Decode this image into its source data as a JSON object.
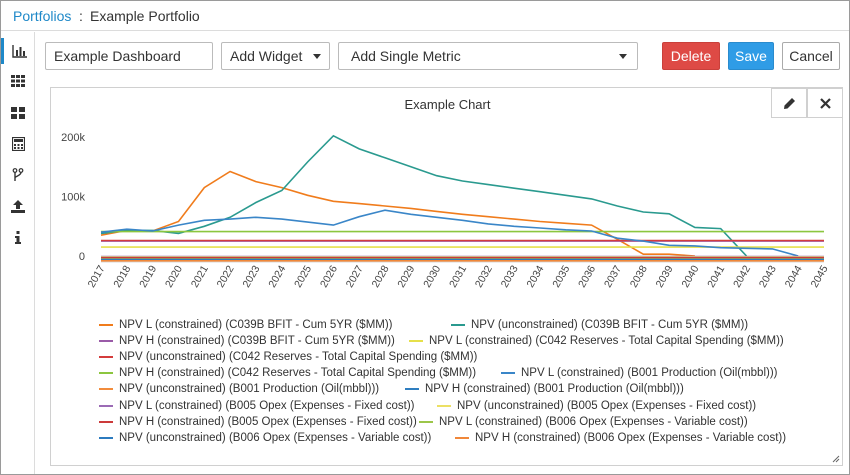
{
  "breadcrumb": {
    "root": "Portfolios",
    "separator": ":",
    "current": "Example Portfolio"
  },
  "sidebar": {
    "items": [
      {
        "icon": "bar-chart-icon",
        "active": true
      },
      {
        "icon": "grid-icon",
        "active": false
      },
      {
        "icon": "tiles-icon",
        "active": false
      },
      {
        "icon": "calculator-icon",
        "active": false
      },
      {
        "icon": "branch-icon",
        "active": false
      },
      {
        "icon": "upload-icon",
        "active": false
      },
      {
        "icon": "info-icon",
        "active": false
      }
    ]
  },
  "toolbar": {
    "dashboard_name": "Example Dashboard",
    "add_widget_label": "Add Widget",
    "add_metric_label": "Add Single Metric",
    "delete_label": "Delete",
    "save_label": "Save",
    "cancel_label": "Cancel"
  },
  "colors": {
    "accent": "#1e88c8",
    "delete": "#de4a45",
    "save": "#2f9ce6"
  },
  "chart_panel": {
    "edit_icon": "pencil-icon",
    "close_icon": "close-icon"
  },
  "chart_data": {
    "type": "line",
    "title": "Example Chart",
    "xlabel": "",
    "ylabel": "",
    "ylim": [
      0,
      200000
    ],
    "y_ticks": [
      0,
      100000,
      200000
    ],
    "y_tick_labels": [
      "0",
      "100k",
      "200k"
    ],
    "x": [
      "2017",
      "2018",
      "2019",
      "2020",
      "2021",
      "2022",
      "2023",
      "2024",
      "2025",
      "2026",
      "2027",
      "2028",
      "2029",
      "2030",
      "2031",
      "2032",
      "2033",
      "2034",
      "2035",
      "2036",
      "2037",
      "2038",
      "2039",
      "2040",
      "2041",
      "2042",
      "2043",
      "2044",
      "2045"
    ],
    "grid": false,
    "legend_position": "bottom",
    "series": [
      {
        "name": "NPV L (constrained) (C039B BFIT - Cum 5YR ($MM))",
        "color": "#f07c1c",
        "values": [
          35000,
          43000,
          42000,
          58000,
          115000,
          142000,
          125000,
          115000,
          102000,
          92000,
          88000,
          84000,
          80000,
          75000,
          70000,
          66000,
          62000,
          58000,
          55000,
          52000,
          28000,
          3000,
          3000,
          0,
          null,
          null,
          null,
          null,
          null
        ]
      },
      {
        "name": "NPV (unconstrained) (C039B BFIT - Cum 5YR ($MM))",
        "color": "#2a9a8f",
        "values": [
          38000,
          43000,
          43000,
          38000,
          50000,
          65000,
          90000,
          110000,
          158000,
          202000,
          180000,
          165000,
          150000,
          135000,
          126000,
          120000,
          114000,
          108000,
          102000,
          96000,
          84000,
          74000,
          71000,
          48000,
          46000,
          0,
          null,
          null,
          null
        ]
      },
      {
        "name": "NPV H (constrained) (C039B BFIT - Cum 5YR ($MM))",
        "color": "#9a5ba8",
        "values": [
          25000,
          25000,
          25000,
          25000,
          25000,
          25000,
          25000,
          25000,
          25000,
          25000,
          25000,
          25000,
          25000,
          25000,
          25000,
          25000,
          25000,
          25000,
          25000,
          25000,
          25000,
          25000,
          25000,
          25000,
          25000,
          25000,
          25000,
          25000,
          25000
        ]
      },
      {
        "name": "NPV L (constrained) (C042 Reserves - Total Capital Spending ($MM))",
        "color": "#e6e04a",
        "values": [
          15000,
          15000,
          15000,
          15000,
          15000,
          15000,
          15000,
          15000,
          15000,
          15000,
          15000,
          15000,
          15000,
          15000,
          15000,
          15000,
          15000,
          15000,
          15000,
          15000,
          15000,
          15000,
          15000,
          15000,
          15000,
          15000,
          15000,
          15000,
          15000
        ]
      },
      {
        "name": "NPV (unconstrained) (C042 Reserves - Total Capital Spending ($MM))",
        "color": "#d43c3c",
        "values": [
          26000,
          26000,
          26000,
          26000,
          26000,
          26000,
          26000,
          26000,
          26000,
          26000,
          26000,
          26000,
          26000,
          26000,
          26000,
          26000,
          26000,
          26000,
          26000,
          26000,
          26000,
          26000,
          26000,
          26000,
          26000,
          26000,
          26000,
          26000,
          26000
        ]
      },
      {
        "name": "NPV H (constrained) (C042 Reserves - Total Capital Spending ($MM))",
        "color": "#8cc63f",
        "values": [
          41000,
          41000,
          41000,
          41000,
          41000,
          41000,
          41000,
          41000,
          41000,
          41000,
          41000,
          41000,
          41000,
          41000,
          41000,
          41000,
          41000,
          41000,
          41000,
          41000,
          41000,
          41000,
          41000,
          41000,
          41000,
          41000,
          41000,
          41000,
          41000
        ]
      },
      {
        "name": "NPV L (constrained) (B001 Production (Oil(mbbl)))",
        "color": "#3a86c8",
        "values": [
          40000,
          45000,
          42000,
          52000,
          60000,
          62000,
          65000,
          62000,
          57000,
          52000,
          66000,
          77000,
          70000,
          65000,
          60000,
          54000,
          50000,
          47000,
          44000,
          42000,
          30000,
          25000,
          18000,
          17000,
          14000,
          13000,
          12000,
          0,
          null
        ]
      },
      {
        "name": "NPV (unconstrained) (B001 Production (Oil(mbbl)))",
        "color": "#f28c3c",
        "values": [
          -4000,
          -4000,
          -4000,
          -4000,
          -4000,
          -4000,
          -4000,
          -4000,
          -4000,
          -4000,
          -4000,
          -4000,
          -4000,
          -4000,
          -4000,
          -4000,
          -4000,
          -4000,
          -4000,
          -4000,
          -4000,
          -4000,
          -4000,
          -4000,
          -4000,
          -4000,
          -4000,
          -4000,
          -4000
        ]
      },
      {
        "name": "NPV H (constrained) (B001 Production (Oil(mbbl)))",
        "color": "#2f7ec0",
        "values": [
          -7000,
          -7000,
          -7000,
          -7000,
          -7000,
          -7000,
          -7000,
          -7000,
          -7000,
          -7000,
          -7000,
          -7000,
          -7000,
          -7000,
          -7000,
          -7000,
          -7000,
          -7000,
          -7000,
          -7000,
          -7000,
          -7000,
          -7000,
          -7000,
          -7000,
          -7000,
          -7000,
          -7000,
          -7000
        ]
      },
      {
        "name": "NPV L (constrained) (B005 Opex (Expenses - Fixed cost))",
        "color": "#9b6bb5",
        "values": [
          -1000,
          -1000,
          -1000,
          -1000,
          -1000,
          -1000,
          -1000,
          -1000,
          -1000,
          -1000,
          -1000,
          -1000,
          -1000,
          -1000,
          -1000,
          -1000,
          -1000,
          -1000,
          -1000,
          -1000,
          -1000,
          -1000,
          -1000,
          -1000,
          -1000,
          -1000,
          -1000,
          -1000,
          -1000
        ]
      },
      {
        "name": "NPV (unconstrained) (B005 Opex (Expenses - Fixed cost))",
        "color": "#ece064",
        "values": [
          -2000,
          -2000,
          -2000,
          -2000,
          -2000,
          -2000,
          -2000,
          -2000,
          -2000,
          -2000,
          -2000,
          -2000,
          -2000,
          -2000,
          -2000,
          -2000,
          -2000,
          -2000,
          -2000,
          -2000,
          -2000,
          -2000,
          -2000,
          -2000,
          -2000,
          -2000,
          -2000,
          -2000,
          -2000
        ]
      },
      {
        "name": "NPV H (constrained) (B005 Opex (Expenses - Fixed cost))",
        "color": "#cc3a3a",
        "values": [
          -3000,
          -3000,
          -3000,
          -3000,
          -3000,
          -3000,
          -3000,
          -3000,
          -3000,
          -3000,
          -3000,
          -3000,
          -3000,
          -3000,
          -3000,
          -3000,
          -3000,
          -3000,
          -3000,
          -3000,
          -3000,
          -3000,
          -3000,
          -3000,
          -3000,
          -3000,
          -3000,
          -3000,
          -3000
        ]
      },
      {
        "name": "NPV L (constrained) (B006 Opex (Expenses - Variable cost))",
        "color": "#9cc64a",
        "values": [
          -5000,
          -5000,
          -5000,
          -5000,
          -5000,
          -5000,
          -5000,
          -5000,
          -5000,
          -5000,
          -5000,
          -5000,
          -5000,
          -5000,
          -5000,
          -5000,
          -5000,
          -5000,
          -5000,
          -5000,
          -5000,
          -5000,
          -5000,
          -5000,
          -5000,
          -5000,
          -5000,
          -5000,
          -5000
        ]
      },
      {
        "name": "NPV (unconstrained) (B006 Opex (Expenses - Variable cost))",
        "color": "#2c7bbf",
        "values": [
          -6000,
          -6000,
          -6000,
          -6000,
          -6000,
          -6000,
          -6000,
          -6000,
          -6000,
          -6000,
          -6000,
          -6000,
          -6000,
          -6000,
          -6000,
          -6000,
          -6000,
          -6000,
          -6000,
          -6000,
          -6000,
          -6000,
          -6000,
          -6000,
          -6000,
          -6000,
          -6000,
          -6000,
          -6000
        ]
      },
      {
        "name": "NPV H (constrained) (B006 Opex (Expenses - Variable cost))",
        "color": "#f0873a",
        "values": [
          -8000,
          -8000,
          -8000,
          -8000,
          -8000,
          -8000,
          -8000,
          -8000,
          -8000,
          -8000,
          -8000,
          -8000,
          -8000,
          -8000,
          -8000,
          -8000,
          -8000,
          -8000,
          -8000,
          -8000,
          -8000,
          -8000,
          -8000,
          -8000,
          -8000,
          -8000,
          -8000,
          -8000,
          -8000
        ]
      }
    ]
  }
}
